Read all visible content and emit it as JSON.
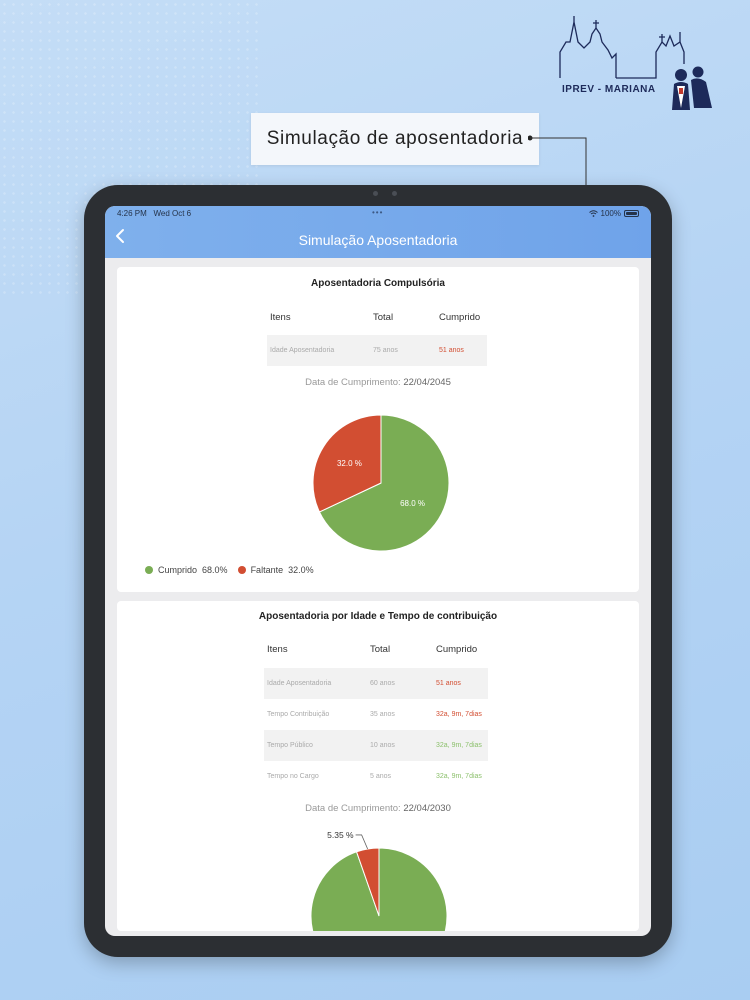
{
  "logo": {
    "text": "IPREV - MARIANA"
  },
  "caption": {
    "text": "Simulação de aposentadoria"
  },
  "status_bar": {
    "time": "4:26 PM",
    "date": "Wed Oct 6",
    "battery": "100%"
  },
  "app_bar": {
    "title": "Simulação Aposentadoria"
  },
  "card1": {
    "title": "Aposentadoria Compulsória",
    "headers": [
      "Itens",
      "Total",
      "Cumprido"
    ],
    "rows": [
      {
        "item": "Idade Aposentadoria",
        "total": "75 anos",
        "cumprido": "51 anos",
        "status": "red"
      }
    ],
    "date_label": "Data de Cumprimento:",
    "date_value": "22/04/2045",
    "legend": [
      {
        "label": "Cumprido",
        "value": "68.0%",
        "color": "#7aad54"
      },
      {
        "label": "Faltante",
        "value": "32.0%",
        "color": "#d24e32"
      }
    ]
  },
  "card2": {
    "title": "Aposentadoria por Idade e Tempo de contribuição",
    "headers": [
      "Itens",
      "Total",
      "Cumprido"
    ],
    "rows": [
      {
        "item": "Idade Aposentadoria",
        "total": "60 anos",
        "cumprido": "51 anos",
        "status": "red"
      },
      {
        "item": "Tempo Contribuição",
        "total": "35 anos",
        "cumprido": "32a, 9m, 7dias",
        "status": "red"
      },
      {
        "item": "Tempo Público",
        "total": "10 anos",
        "cumprido": "32a, 9m, 7dias",
        "status": "green"
      },
      {
        "item": "Tempo no Cargo",
        "total": "5 anos",
        "cumprido": "32a, 9m, 7dias",
        "status": "green"
      }
    ],
    "date_label": "Data de Cumprimento:",
    "date_value": "22/04/2030"
  },
  "chart_data": [
    {
      "type": "pie",
      "categories": [
        "Cumprido",
        "Faltante"
      ],
      "values": [
        68.0,
        32.0
      ],
      "labels": [
        "68.0 %",
        "32.0 %"
      ],
      "colors": [
        "#7aad54",
        "#d24e32"
      ]
    },
    {
      "type": "pie",
      "categories": [
        "Cumprido",
        "Faltante"
      ],
      "values": [
        94.65,
        5.35
      ],
      "labels": [
        "",
        "5.35 %"
      ],
      "colors": [
        "#7aad54",
        "#d24e32"
      ]
    }
  ]
}
